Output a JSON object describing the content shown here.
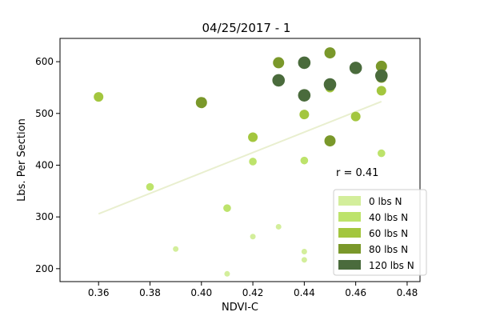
{
  "chart_data": {
    "type": "scatter",
    "title": "04/25/2017 - 1",
    "xlabel": "NDVI-C",
    "ylabel": "Lbs. Per Section",
    "xlim": [
      0.345,
      0.485
    ],
    "ylim": [
      175,
      645
    ],
    "x_ticks": [
      0.36,
      0.38,
      0.4,
      0.42,
      0.44,
      0.46,
      0.48
    ],
    "x_tick_labels": [
      "0.36",
      "0.38",
      "0.40",
      "0.42",
      "0.44",
      "0.46",
      "0.48"
    ],
    "y_ticks": [
      200,
      300,
      400,
      500,
      600
    ],
    "y_tick_labels": [
      "200",
      "300",
      "400",
      "500",
      "600"
    ],
    "grid": false,
    "legend_position": "bottom-right",
    "annotation": "r = 0.41",
    "trendline": {
      "x": [
        0.36,
        0.47
      ],
      "y": [
        306,
        523
      ],
      "color": "#e9efcf"
    },
    "series": [
      {
        "name": "0 lbs N",
        "color": "#d3ee9b",
        "marker_rank": 0,
        "points": [
          [
            0.39,
            238
          ],
          [
            0.41,
            190
          ],
          [
            0.42,
            262
          ],
          [
            0.43,
            281
          ],
          [
            0.44,
            233
          ],
          [
            0.44,
            217
          ]
        ]
      },
      {
        "name": "40 lbs N",
        "color": "#bde36b",
        "marker_rank": 1,
        "points": [
          [
            0.38,
            358
          ],
          [
            0.41,
            317
          ],
          [
            0.42,
            407
          ],
          [
            0.44,
            409
          ],
          [
            0.47,
            423
          ]
        ]
      },
      {
        "name": "60 lbs N",
        "color": "#a3c63e",
        "marker_rank": 2,
        "points": [
          [
            0.36,
            532
          ],
          [
            0.42,
            454
          ],
          [
            0.44,
            498
          ],
          [
            0.45,
            550
          ],
          [
            0.46,
            494
          ],
          [
            0.47,
            544
          ]
        ]
      },
      {
        "name": "80 lbs N",
        "color": "#7a982a",
        "marker_rank": 3,
        "points": [
          [
            0.4,
            521
          ],
          [
            0.43,
            598
          ],
          [
            0.45,
            617
          ],
          [
            0.45,
            447
          ],
          [
            0.47,
            591
          ],
          [
            0.47,
            570
          ]
        ]
      },
      {
        "name": "120 lbs N",
        "color": "#4a6b3c",
        "marker_rank": 4,
        "points": [
          [
            0.43,
            564
          ],
          [
            0.44,
            598
          ],
          [
            0.44,
            535
          ],
          [
            0.45,
            556
          ],
          [
            0.46,
            588
          ],
          [
            0.47,
            573
          ]
        ]
      }
    ]
  }
}
